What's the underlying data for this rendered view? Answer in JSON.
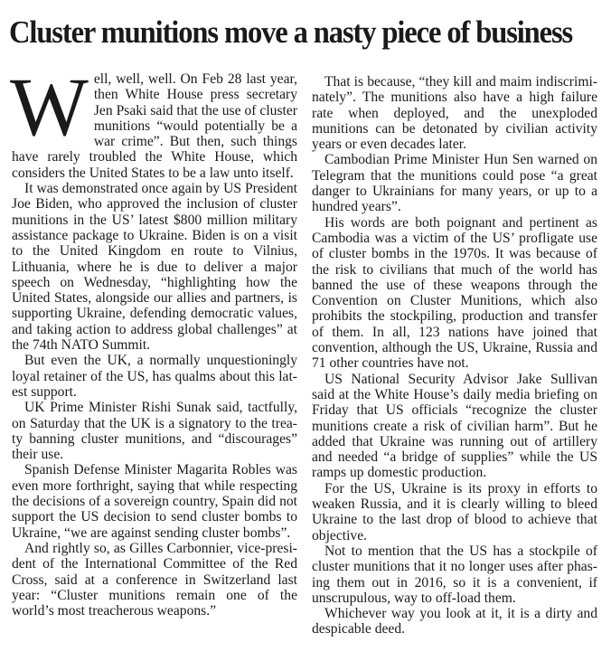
{
  "headline": "Cluster munitions move a nasty piece of business",
  "article": {
    "drop_cap": "W",
    "first_paragraph_rest": "ell, well, well. On Feb 28 last year, then White House press secretary Jen Psaki said that the use of cluster munitions “would potentially be a war crime”. But then, such things have rarely troubled the White House, which considers the United States to be a law unto itself.",
    "left_paragraphs": [
      "It was demonstrated once again by US President Joe Biden, who approved the inclusion of cluster munitions in the US’ latest $800 million military assistance package to Ukraine. Biden is on a visit to the United Kingdom en route to Vilnius, Lithuania, where he is due to deliver a major speech on Wednesday, “highlighting how the United States, alongside our allies and partners, is supporting Ukraine, defending democratic values, and taking action to address global challenges” at the 74th NATO Summit.",
      "But even the UK, a normally unquestioningly loyal retainer of the US, has qualms about this lat­est support.",
      "UK Prime Minister Rishi Sunak said, tactfully, on Saturday that the UK is a signatory to the trea­ty banning cluster munitions, and “discourages” their use.",
      "Spanish Defense Minister Magarita Robles was even more forthright, saying that while respect­ing the decisions of a sovereign country, Spain did not support the US decision to send cluster bombs to Ukraine, “we are against sending clus­ter bombs”.",
      "And rightly so, as Gilles Carbonnier, vice-presi­dent of the International Committee of the Red Cross, said at a conference in Switzerland last year: “Cluster munitions remain one of the world’s most treacherous weapons.”"
    ],
    "right_paragraphs": [
      "That is because, “they kill and maim indiscrimi­nately”. The munitions also have a high failure rate when deployed, and the unexploded munitions can be detonated by civilian activity years or even dec­ades later.",
      "Cambodian Prime Minister Hun Sen warned on Telegram that the munitions could pose “a great danger to Ukrainians for many years, or up to a hundred years”.",
      "His words are both poignant and pertinent as Cambodia was a victim of the US’ profligate use of cluster bombs in the 1970s. It was because of the risk to civilians that much of the world has banned the use of these weapons through the Convention on Cluster Munitions, which also prohibits the stockpiling, production and transfer of them. In all, 123 nations have joined that convention, although the US, Ukraine, Russia and 71 other countries have not.",
      "US National Security Advisor Jake Sullivan said at the White House’s daily media briefing on Friday that US officials “recognize the cluster munitions create a risk of civilian harm”. But he added that Ukraine was running out of artillery and needed “a bridge of supplies” while the US ramps up domes­tic production.",
      "For the US, Ukraine is its proxy in efforts to weaken Russia, and it is clearly willing to bleed Ukraine to the last drop of blood to achieve that objective.",
      "Not to mention that the US has a stockpile of cluster munitions that it no longer uses after phas­ing them out in 2016, so it is a convenient, if unscru­pulous, way to off-load them.",
      "Whichever way you look at it, it is a dirty and despicable deed."
    ]
  }
}
